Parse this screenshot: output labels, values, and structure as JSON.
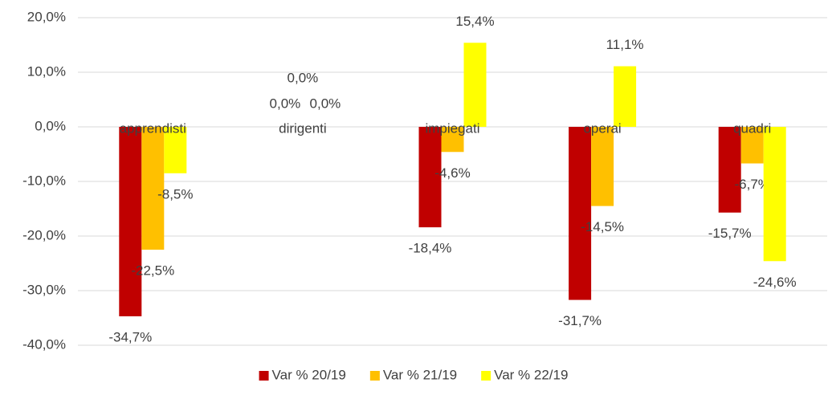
{
  "chart_data": {
    "type": "bar",
    "categories": [
      "apprendisti",
      "dirigenti",
      "impiegati",
      "operai",
      "quadri"
    ],
    "series": [
      {
        "name": "Var % 20/19",
        "color": "#c00000",
        "values": [
          -34.7,
          0,
          -18.4,
          -31.7,
          -15.7
        ],
        "value_labels": [
          "-34,7%",
          "0,0%",
          "-18,4%",
          "-31,7%",
          "-15,7%"
        ]
      },
      {
        "name": "Var % 21/19",
        "color": "#ffc000",
        "values": [
          -22.5,
          0,
          -4.6,
          -14.5,
          -6.7
        ],
        "value_labels": [
          "-22,5%",
          "0,0%",
          "-4,6%",
          "-14,5%",
          "-6,7%"
        ]
      },
      {
        "name": "Var % 22/19",
        "color": "#ffff00",
        "values": [
          -8.5,
          0,
          15.4,
          11.1,
          -24.6
        ],
        "value_labels": [
          "-8,5%",
          "0,0%",
          "15,4%",
          "11,1%",
          "-24,6%"
        ]
      }
    ],
    "ylim": [
      -40,
      20
    ],
    "yticks": [
      {
        "value": -40,
        "label": "-40,0%"
      },
      {
        "value": -30,
        "label": "-30,0%"
      },
      {
        "value": -20,
        "label": "-20,0%"
      },
      {
        "value": -10,
        "label": "-10,0%"
      },
      {
        "value": 0,
        "label": "0,0%"
      },
      {
        "value": 10,
        "label": "10,0%"
      },
      {
        "value": 20,
        "label": "20,0%"
      }
    ],
    "grid": true,
    "legend": "bottom"
  }
}
